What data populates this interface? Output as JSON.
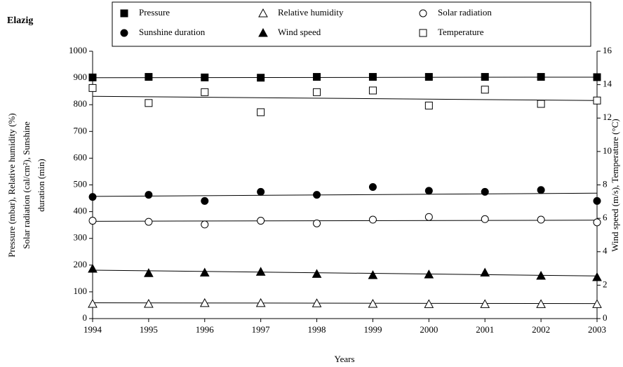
{
  "chart_data": {
    "type": "scatter",
    "title": "Elazig",
    "x_label": "Years",
    "y_label": [
      "Pressure (mbar), Relative humidity (%)",
      "Solar radiation (cal/cm²), Sunshine",
      "duration (min)"
    ],
    "y2_label": "Wind speed (m/s), Temperature (°C)",
    "x": [
      1994,
      1995,
      1996,
      1997,
      1998,
      1999,
      2000,
      2001,
      2002,
      2003
    ],
    "xlim": [
      1994,
      2003
    ],
    "xticks": [
      1994,
      1995,
      1996,
      1997,
      1998,
      1999,
      2000,
      2001,
      2002,
      2003
    ],
    "ylim": [
      0,
      1000
    ],
    "yticks": [
      0,
      100,
      200,
      300,
      400,
      500,
      600,
      700,
      800,
      900,
      1000
    ],
    "y2lim": [
      0,
      16
    ],
    "y2ticks": [
      0,
      2,
      4,
      6,
      8,
      10,
      12,
      14,
      16
    ],
    "grid": false,
    "legend": "top",
    "series": [
      {
        "name": "Pressure",
        "color": "#000000",
        "marker": "square",
        "filled": true,
        "values": [
          902,
          904,
          902,
          901,
          904,
          904,
          904,
          904,
          904,
          903
        ],
        "trend": [
          901,
          903
        ]
      },
      {
        "name": "Relative humidity",
        "color": "#000000",
        "marker": "triangle",
        "filled": false,
        "values": [
          55,
          55,
          58,
          58,
          57,
          55,
          54,
          54,
          54,
          54
        ],
        "trend": [
          59,
          56
        ]
      },
      {
        "name": "Solar radiation",
        "color": "#000000",
        "marker": "circle",
        "filled": false,
        "values": [
          366,
          362,
          352,
          366,
          356,
          370,
          380,
          372,
          370,
          360
        ],
        "trend": [
          364,
          368
        ]
      },
      {
        "name": "Sunshine duration",
        "color": "#000000",
        "marker": "circle",
        "filled": true,
        "values": [
          455,
          463,
          440,
          474,
          463,
          492,
          478,
          474,
          481,
          440
        ],
        "trend": [
          457,
          469
        ]
      },
      {
        "name": "Wind speed",
        "color": "#000000",
        "marker": "triangle",
        "filled": true,
        "axis": "y2",
        "values": [
          2.98,
          2.72,
          2.75,
          2.8,
          2.67,
          2.6,
          2.64,
          2.75,
          2.56,
          2.48
        ],
        "trend": [
          2.9,
          2.55
        ]
      },
      {
        "name": "Temperature",
        "color": "#000000",
        "marker": "square",
        "filled": false,
        "axis": "y2",
        "values": [
          13.8,
          12.9,
          13.55,
          12.35,
          13.55,
          13.65,
          12.75,
          13.7,
          12.85,
          13.05
        ],
        "trend": [
          13.3,
          13.05
        ]
      }
    ]
  }
}
